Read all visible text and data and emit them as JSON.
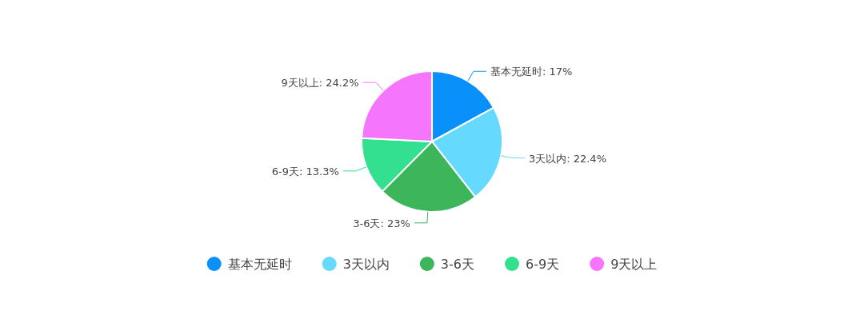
{
  "chart_data": {
    "type": "pie",
    "categories": [
      "基本无延时",
      "3天以内",
      "3-6天",
      "6-9天",
      "9天以上"
    ],
    "values": [
      17,
      22.4,
      23,
      13.3,
      24.2
    ],
    "value_labels": [
      "基本无延时: 17%",
      "3天以内: 22.4%",
      "3-6天: 23%",
      "6-9天: 13.3%",
      "9天以上: 24.2%"
    ],
    "colors": [
      "#0a90fb",
      "#66d9ff",
      "#3db55b",
      "#33e08f",
      "#f575fd"
    ],
    "legend": "bottom"
  }
}
